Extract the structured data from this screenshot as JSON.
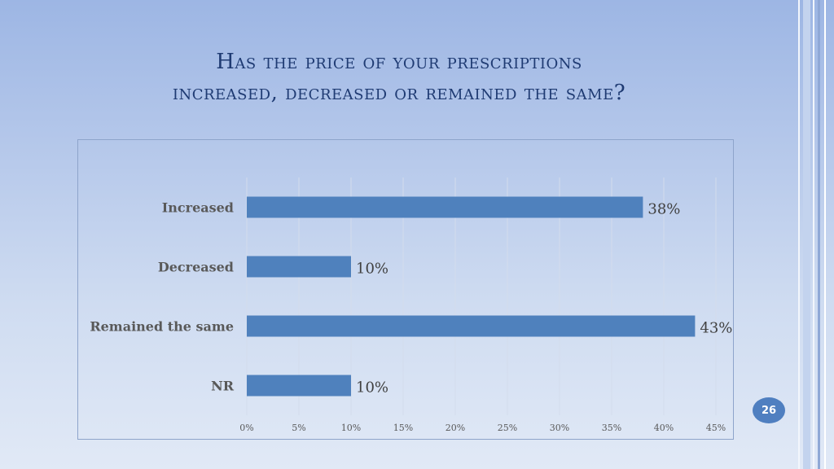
{
  "slide": {
    "title_line1": "Has the price of your prescriptions",
    "title_line2": "increased, decreased or remained the same?",
    "page_number": "26"
  },
  "colors": {
    "bar": "#4f81bd",
    "grid": "#d3dcec"
  },
  "chart_data": {
    "type": "bar",
    "orientation": "horizontal",
    "categories": [
      "Increased",
      "Decreased",
      "Remained the same",
      "NR"
    ],
    "values": [
      38,
      10,
      43,
      10
    ],
    "value_labels": [
      "38%",
      "10%",
      "43%",
      "10%"
    ],
    "x_ticks": [
      "0%",
      "5%",
      "10%",
      "15%",
      "20%",
      "25%",
      "30%",
      "35%",
      "40%",
      "45%"
    ],
    "xlim": [
      0,
      45
    ],
    "grid": true,
    "legend": "none"
  }
}
